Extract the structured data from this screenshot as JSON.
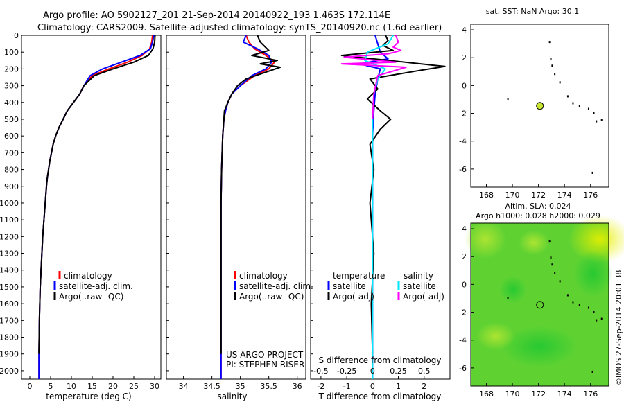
{
  "header": {
    "line1": "Argo profile: AO 5902127_201 21-Sep-2014 20140922_193 1.463S 172.114E",
    "line2": "Climatology: CARS2009. Satellite-adjusted climatology: synTS_20140920.nc (1.6d earlier)"
  },
  "colors": {
    "climatology": "#ff0000",
    "satellite": "#0000ff",
    "argo": "#000000",
    "salinity_satellite": "#00e5ff",
    "salinity_argo": "#ff00ff",
    "marker_fill": "#c8e632",
    "sla_green": "#33cc33"
  },
  "panels": {
    "temperature": {
      "xlabel": "temperature (deg C)",
      "legend": [
        "climatology",
        "satellite-adj. clim.",
        "Argo(..raw -QC)"
      ]
    },
    "salinity": {
      "xlabel": "salinity",
      "legend": [
        "climatology",
        "satellite-adj. clim.",
        "Argo(..raw -QC)"
      ],
      "note1": "US ARGO PROJECT",
      "note2": "PI: STEPHEN RISER"
    },
    "difference": {
      "xlabel": "T difference from climatology",
      "toplabel": "S difference from climatology",
      "legend_temp_title": "temperature",
      "legend_sal_title": "salinity",
      "legend_items": [
        "satellite",
        "Argo(-adj)"
      ]
    },
    "sst_map": {
      "title": "sat. SST: NaN Argo: 30.1"
    },
    "sla_map": {
      "title1": "Altim. SLA: 0.024",
      "title2": "Argo h1000: 0.028 h2000: 0.029",
      "side_label": "©IMOS 27-Sep-2014 20:01:38"
    }
  },
  "chart_data": [
    {
      "type": "line",
      "name": "temperature-profile",
      "xlabel": "temperature (deg C)",
      "ylabel": "",
      "xlim": [
        -2,
        31.5
      ],
      "ylim": [
        0,
        2050
      ],
      "y_reversed": true,
      "xticks": [
        0,
        5,
        10,
        15,
        20,
        25,
        30
      ],
      "yticks": [
        0,
        100,
        200,
        300,
        400,
        500,
        600,
        700,
        800,
        900,
        1000,
        1100,
        1200,
        1300,
        1400,
        1500,
        1600,
        1700,
        1800,
        1900,
        2000
      ],
      "series": [
        {
          "name": "climatology",
          "color": "#ff0000",
          "x": [
            29.5,
            29.3,
            28.8,
            27.0,
            23.5,
            19.0,
            15.0,
            13.0,
            12.0,
            10.5,
            9.0,
            8.0,
            7.0,
            6.2,
            5.6,
            5.2,
            4.8,
            4.5,
            4.2,
            4.0,
            3.7,
            3.4,
            3.1,
            2.9,
            2.7,
            2.5,
            2.4,
            2.3,
            2.2,
            2.2
          ],
          "y": [
            0,
            40,
            80,
            120,
            160,
            200,
            240,
            300,
            350,
            400,
            450,
            500,
            550,
            600,
            650,
            700,
            750,
            800,
            850,
            900,
            1000,
            1100,
            1200,
            1300,
            1400,
            1500,
            1600,
            1700,
            1900,
            2050
          ]
        },
        {
          "name": "satellite-adj. clim.",
          "color": "#0000ff",
          "x": [
            29.8,
            29.5,
            29.0,
            26.5,
            22.0,
            17.5,
            14.5,
            13.0,
            12.0,
            10.5,
            9.0,
            8.0,
            7.0,
            6.2,
            5.6,
            5.2,
            4.8,
            4.5,
            4.2,
            4.0,
            3.7,
            3.4,
            3.1,
            2.9,
            2.7,
            2.5,
            2.4,
            2.3,
            2.2,
            2.2
          ],
          "y": [
            0,
            40,
            80,
            120,
            160,
            200,
            240,
            300,
            350,
            400,
            450,
            500,
            550,
            600,
            650,
            700,
            750,
            800,
            850,
            900,
            1000,
            1100,
            1200,
            1300,
            1400,
            1500,
            1600,
            1700,
            1900,
            2050
          ]
        },
        {
          "name": "Argo(..raw -QC)",
          "color": "#000000",
          "x": [
            30.1,
            30.0,
            29.6,
            28.5,
            25.0,
            20.0,
            15.5,
            13.0,
            12.0,
            10.5,
            9.0,
            8.0,
            7.0,
            6.2,
            5.6,
            5.2,
            4.8,
            4.5,
            4.2,
            4.0,
            3.7,
            3.4,
            3.1,
            2.9,
            2.7,
            2.5,
            2.4,
            2.3,
            2.2
          ],
          "y": [
            0,
            40,
            80,
            120,
            160,
            200,
            240,
            300,
            350,
            400,
            450,
            500,
            550,
            600,
            650,
            700,
            750,
            800,
            850,
            900,
            1000,
            1100,
            1200,
            1300,
            1400,
            1500,
            1600,
            1700,
            1900
          ]
        }
      ]
    },
    {
      "type": "line",
      "name": "salinity-profile",
      "xlabel": "salinity",
      "ylabel": "",
      "xlim": [
        33.7,
        36.15
      ],
      "ylim": [
        0,
        2050
      ],
      "y_reversed": true,
      "xticks": [
        34,
        34.5,
        35,
        35.5,
        36
      ],
      "series": [
        {
          "name": "climatology",
          "color": "#ff0000",
          "x": [
            35.1,
            35.15,
            35.25,
            35.45,
            35.6,
            35.5,
            35.25,
            35.0,
            34.85,
            34.78,
            34.74,
            34.71,
            34.69,
            34.68,
            34.67,
            34.66,
            34.66,
            34.66,
            34.66
          ],
          "y": [
            0,
            40,
            80,
            120,
            160,
            200,
            240,
            300,
            350,
            400,
            450,
            500,
            600,
            700,
            800,
            1000,
            1300,
            1700,
            2050
          ]
        },
        {
          "name": "satellite-adj. clim.",
          "color": "#0000ff",
          "x": [
            35.1,
            35.05,
            35.3,
            35.5,
            35.55,
            35.45,
            35.2,
            35.0,
            34.85,
            34.78,
            34.74,
            34.71,
            34.69,
            34.68,
            34.67,
            34.66,
            34.66,
            34.66,
            34.66
          ],
          "y": [
            0,
            40,
            80,
            120,
            160,
            200,
            240,
            300,
            350,
            400,
            450,
            500,
            600,
            700,
            800,
            1000,
            1300,
            1700,
            2050
          ]
        },
        {
          "name": "Argo(..raw -QC)",
          "color": "#000000",
          "x": [
            35.3,
            35.35,
            35.5,
            35.2,
            35.65,
            35.35,
            35.7,
            35.1,
            34.95,
            34.85,
            34.78,
            34.72,
            34.69,
            34.68,
            34.67,
            34.66,
            34.66,
            34.66
          ],
          "y": [
            0,
            40,
            90,
            120,
            150,
            170,
            190,
            260,
            300,
            350,
            400,
            450,
            600,
            700,
            800,
            1000,
            1300,
            1900
          ]
        }
      ]
    },
    {
      "type": "line",
      "name": "difference-profile",
      "xlabel": "T difference from climatology",
      "toplabel": "S difference from climatology",
      "xlim_T": [
        -2.4,
        3.0
      ],
      "xticks_T": [
        -2,
        -1,
        0,
        1,
        2
      ],
      "xticks_S": [
        -0.5,
        -0.25,
        0,
        0.25,
        0.5
      ],
      "ylim": [
        0,
        2050
      ],
      "y_reversed": true,
      "series": [
        {
          "name": "temperature satellite",
          "color": "#0000ff",
          "x": [
            0.1,
            0.2,
            0.3,
            0.6,
            -0.5,
            0.3,
            0.2,
            0.1,
            0.05,
            0.0,
            0.0,
            0.0,
            0.0
          ],
          "y": [
            0,
            50,
            100,
            140,
            170,
            200,
            260,
            350,
            450,
            600,
            900,
            1300,
            2050
          ]
        },
        {
          "name": "temperature Argo(-adj)",
          "color": "#000000",
          "x": [
            0.5,
            0.6,
            0.4,
            0.8,
            -1.2,
            2.8,
            1.8,
            -0.1,
            0.2,
            -0.2,
            0.3,
            0.7,
            0.3,
            -0.1,
            0.05,
            -0.1,
            0.05,
            -0.05,
            0.0
          ],
          "y": [
            0,
            30,
            60,
            90,
            120,
            185,
            210,
            260,
            320,
            380,
            450,
            500,
            560,
            650,
            800,
            1000,
            1300,
            1600,
            1900
          ]
        },
        {
          "name": "salinity satellite",
          "color": "#00e5ff",
          "x": [
            0.8,
            0.6,
            -0.2,
            -0.3,
            0.5,
            0.2,
            0.05,
            0.0,
            0.0,
            0.0,
            0.0
          ],
          "y": [
            0,
            50,
            100,
            150,
            200,
            260,
            350,
            500,
            800,
            1300,
            2050
          ]
        },
        {
          "name": "salinity Argo(-adj)",
          "color": "#ff00ff",
          "x": [
            0.9,
            1.0,
            0.8,
            1.1,
            0.6,
            -1.1,
            0.9,
            -1.2,
            1.3,
            0.2,
            0.05,
            0.0
          ],
          "y": [
            0,
            40,
            70,
            90,
            110,
            130,
            160,
            170,
            190,
            240,
            350,
            500
          ]
        }
      ]
    },
    {
      "type": "scatter",
      "name": "sst-map",
      "title": "sat. SST: NaN Argo: 30.1",
      "xlim": [
        166.8,
        177.4
      ],
      "ylim": [
        -7.3,
        4.4
      ],
      "xticks": [
        168,
        170,
        172,
        174,
        176
      ],
      "yticks": [
        4,
        2,
        0,
        -2,
        -4,
        -6
      ],
      "points": [
        {
          "x": 172.114,
          "y": -1.463
        }
      ]
    },
    {
      "type": "heatmap",
      "name": "sla-map",
      "title": "Altim. SLA: 0.024",
      "subtitle": "Argo h1000: 0.028 h2000: 0.029",
      "xlim": [
        166.8,
        177.4
      ],
      "ylim": [
        -7.3,
        4.4
      ],
      "xticks": [
        168,
        170,
        172,
        174,
        176
      ],
      "yticks": [
        4,
        2,
        0,
        -2,
        -4,
        -6
      ],
      "points": [
        {
          "x": 172.114,
          "y": -1.463
        }
      ]
    }
  ]
}
